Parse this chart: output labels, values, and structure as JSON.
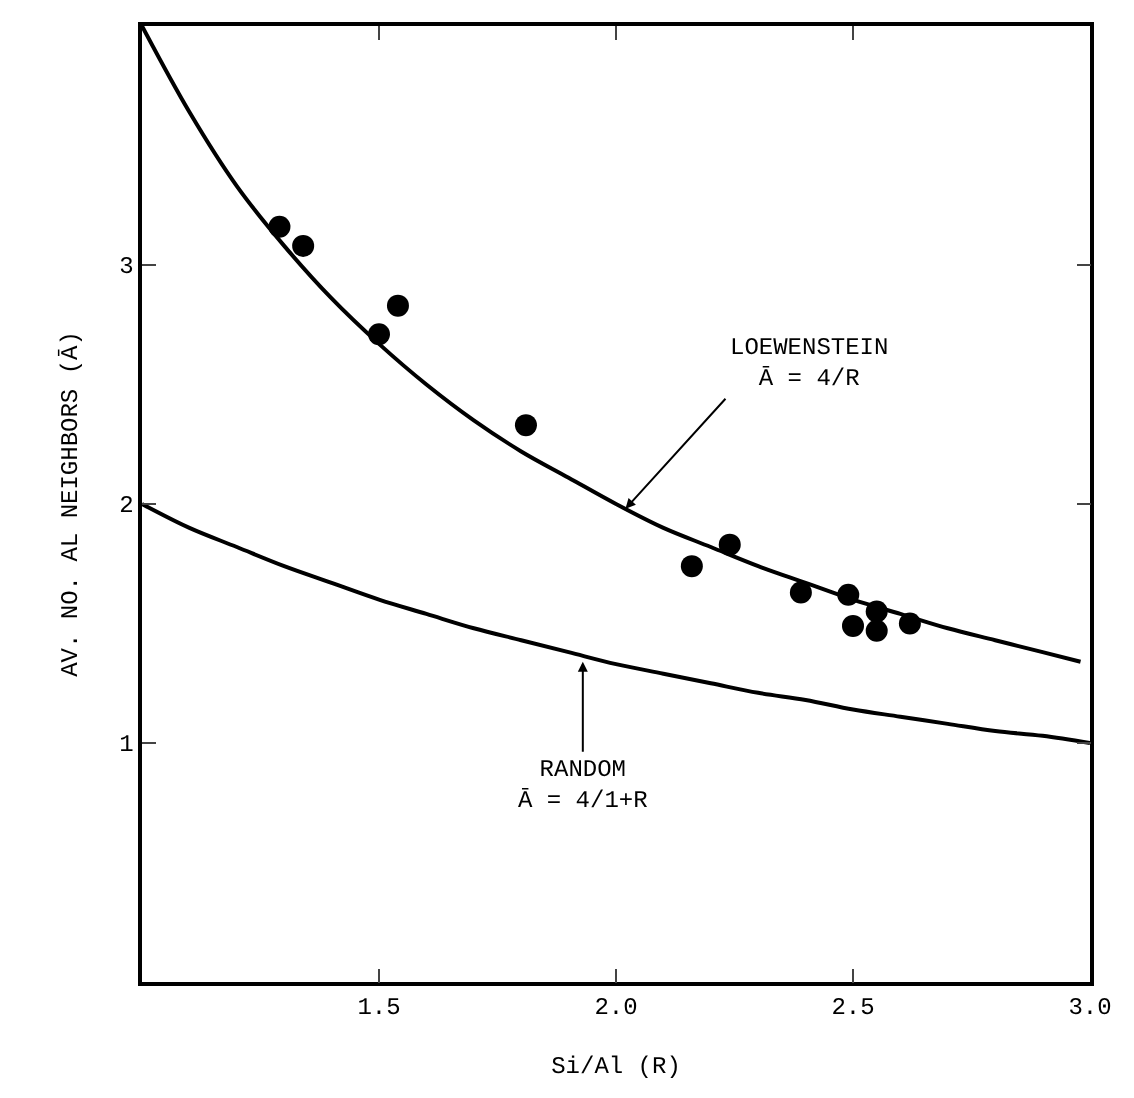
{
  "chart_data": {
    "type": "scatter",
    "xlabel": "Si/Al (R)",
    "ylabel": "AV. NO. AL NEIGHBORS (Ā)",
    "xlim": [
      1,
      3
    ],
    "ylim": [
      0,
      4
    ],
    "xticks": [
      1.5,
      {
        "value": 2.0,
        "label": "2.0"
      },
      2.5,
      {
        "value": 3.0,
        "label": "3.0"
      }
    ],
    "yticks": [
      1,
      2,
      3
    ],
    "series": [
      {
        "type": "line",
        "marker": "none",
        "color": "#000000",
        "x": [
          1.0,
          1.1,
          1.2,
          1.3,
          1.4,
          1.5,
          1.6,
          1.7,
          1.8,
          1.9,
          2.0,
          2.1,
          2.2,
          2.3,
          2.4,
          2.5,
          2.6,
          2.7,
          2.8,
          2.9,
          2.98
        ],
        "values": [
          4.0,
          3.64,
          3.33,
          3.08,
          2.86,
          2.67,
          2.5,
          2.35,
          2.22,
          2.11,
          2.0,
          1.9,
          1.82,
          1.74,
          1.67,
          1.6,
          1.54,
          1.48,
          1.43,
          1.38,
          1.34
        ]
      },
      {
        "type": "line",
        "marker": "none",
        "color": "#000000",
        "x": [
          1.0,
          1.1,
          1.2,
          1.3,
          1.4,
          1.5,
          1.6,
          1.7,
          1.8,
          1.9,
          2.0,
          2.1,
          2.2,
          2.3,
          2.4,
          2.5,
          2.6,
          2.7,
          2.8,
          2.9,
          3.0
        ],
        "values": [
          2.0,
          1.9,
          1.82,
          1.74,
          1.67,
          1.6,
          1.54,
          1.48,
          1.43,
          1.38,
          1.33,
          1.29,
          1.25,
          1.21,
          1.18,
          1.14,
          1.11,
          1.08,
          1.05,
          1.03,
          1.0
        ]
      },
      {
        "marker": "circle",
        "color": "#000000",
        "x": [
          1.29,
          1.34,
          1.5,
          1.54,
          1.81,
          2.16,
          2.24,
          2.39,
          2.49,
          2.5,
          2.55,
          2.55,
          2.62
        ],
        "values": [
          3.16,
          3.08,
          2.71,
          2.83,
          2.33,
          1.74,
          1.83,
          1.63,
          1.62,
          1.49,
          1.55,
          1.47,
          1.5
        ]
      }
    ],
    "annotations": [
      {
        "text": "LOEWENSTEIN\nĀ = 4/R",
        "x": 2.02,
        "y": 1.98
      },
      {
        "text": "RANDOM\nĀ = 4/1+R",
        "x": 1.93,
        "y": 1.34
      }
    ]
  }
}
